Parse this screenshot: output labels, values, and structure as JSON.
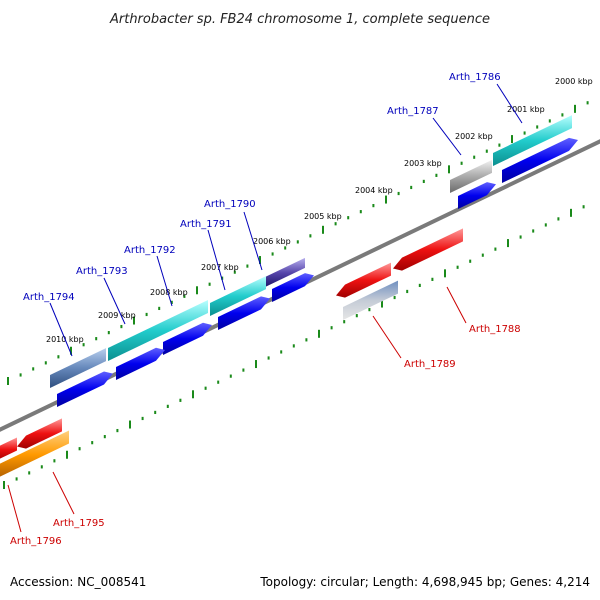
{
  "title": "Arthrobacter sp. FB24 chromosome 1, complete sequence",
  "footer": {
    "accession": "Accession: NC_008541",
    "topology": "Topology: circular; Length: 4,698,945 bp; Genes: 4,214"
  },
  "kbp_labels": [
    {
      "text": "2000 kbp"
    },
    {
      "text": "2001 kbp"
    },
    {
      "text": "2002 kbp"
    },
    {
      "text": "2003 kbp"
    },
    {
      "text": "2004 kbp"
    },
    {
      "text": "2005 kbp"
    },
    {
      "text": "2006 kbp"
    },
    {
      "text": "2007 kbp"
    },
    {
      "text": "2008 kbp"
    },
    {
      "text": "2009 kbp"
    },
    {
      "text": "2010 kbp"
    }
  ],
  "genes_top": [
    "Arth_1786",
    "Arth_1787",
    "Arth_1790",
    "Arth_1791",
    "Arth_1792",
    "Arth_1793",
    "Arth_1794"
  ],
  "genes_bottom": [
    "Arth_1788",
    "Arth_1789",
    "Arth_1795",
    "Arth_1796"
  ],
  "colors": {
    "backbone": "#7a7a7a",
    "ticks": "#1a8a1a",
    "cds_blue": "#0000ee",
    "cyan": "#22cccc",
    "steel": "#6688bb",
    "grey": "#aaaaaa",
    "red": "#ee1111",
    "orange": "#ff9900",
    "purple": "#5544aa"
  }
}
